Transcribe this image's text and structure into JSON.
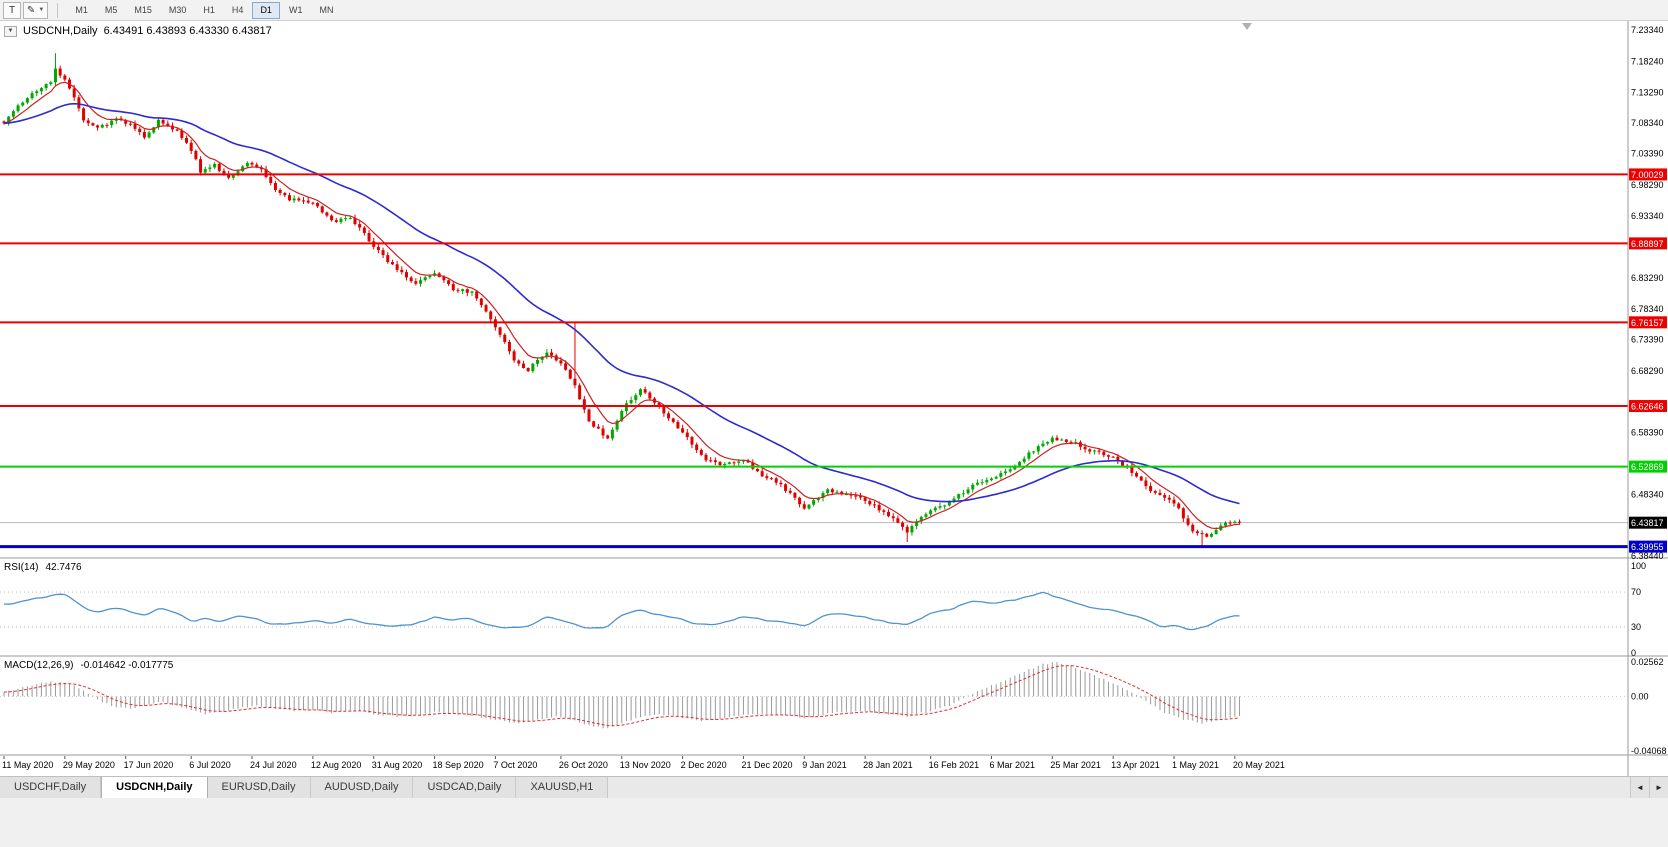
{
  "toolbar": {
    "text_tool_label": "T",
    "pen_icon": "✎",
    "dropdown_icon": "▼",
    "timeframes": [
      "M1",
      "M5",
      "M15",
      "M30",
      "H1",
      "H4",
      "D1",
      "W1",
      "MN"
    ],
    "active_timeframe": "D1"
  },
  "chart": {
    "collapse_icon": "▼",
    "symbol_label": "USDCNH,Daily",
    "ohlc": "6.43491 6.43893 6.43330 6.43817"
  },
  "indicators": {
    "rsi": {
      "label": "RSI(14)",
      "value": "42.7476",
      "levels": [
        "100",
        "70",
        "30",
        "0"
      ],
      "level_values": [
        100,
        70,
        30,
        0
      ]
    },
    "macd": {
      "label": "MACD(12,26,9)",
      "values": "-0.014642 -0.017775",
      "axis": [
        "0.02562",
        "0.00",
        "-0.04068"
      ],
      "axis_values": [
        0.02562,
        0.0,
        -0.04068
      ]
    }
  },
  "price_axis": {
    "labels": [
      "7.23340",
      "7.18240",
      "7.13290",
      "7.08340",
      "7.03390",
      "6.98290",
      "6.93340",
      "6.83290",
      "6.78340",
      "6.73390",
      "6.68290",
      "6.58390",
      "6.48340",
      "6.38440"
    ]
  },
  "hlines": [
    {
      "price": 7.00029,
      "label": "7.00029",
      "color": "#ee0000",
      "width": 2
    },
    {
      "price": 6.88897,
      "label": "6.88897",
      "color": "#ee0000",
      "width": 2
    },
    {
      "price": 6.76157,
      "label": "6.76157",
      "color": "#ee0000",
      "width": 2
    },
    {
      "price": 6.62646,
      "label": "6.62646",
      "color": "#ee0000",
      "width": 2
    },
    {
      "price": 6.52869,
      "label": "6.52869",
      "color": "#00d200",
      "width": 2
    },
    {
      "price": 6.39955,
      "label": "6.39955",
      "color": "#0000c8",
      "width": 3
    }
  ],
  "current_price": {
    "value": 6.43817,
    "label": "6.43817",
    "badge_color": "#000000"
  },
  "tabs": {
    "labels": [
      "USDCHF,Daily",
      "USDCNH,Daily",
      "EURUSD,Daily",
      "AUDUSD,Daily",
      "USDCAD,Daily",
      "XAUUSD,H1"
    ],
    "active": "USDCNH,Daily",
    "scroll_left_icon": "◄",
    "scroll_right_icon": "►"
  },
  "chart_data": {
    "type": "candlestick",
    "symbol": "USDCNH",
    "timeframe": "Daily",
    "bars": 265,
    "price_range": [
      6.3844,
      7.2334
    ],
    "ma_fast_period": 7,
    "ma_slow_period": 34,
    "colors": {
      "up": "#00a800",
      "down": "#e00000",
      "ma_fast": "#cc2222",
      "ma_slow": "#2b2bd0",
      "rsi": "#4f93ce",
      "macd_hist": "#9a9a9a",
      "macd_signal": "#e03030",
      "current_price_line": "#b8b8b8",
      "separator": "#9a9a9a"
    },
    "close_anchors": [
      [
        0,
        7.085
      ],
      [
        5,
        7.125
      ],
      [
        10,
        7.15
      ],
      [
        11,
        7.172
      ],
      [
        14,
        7.14
      ],
      [
        17,
        7.09
      ],
      [
        20,
        7.075
      ],
      [
        24,
        7.09
      ],
      [
        27,
        7.08
      ],
      [
        30,
        7.06
      ],
      [
        33,
        7.088
      ],
      [
        37,
        7.07
      ],
      [
        40,
        7.04
      ],
      [
        42,
        7.005
      ],
      [
        45,
        7.015
      ],
      [
        48,
        6.995
      ],
      [
        52,
        7.02
      ],
      [
        55,
        7.01
      ],
      [
        58,
        6.975
      ],
      [
        61,
        6.96
      ],
      [
        66,
        6.955
      ],
      [
        70,
        6.925
      ],
      [
        74,
        6.93
      ],
      [
        79,
        6.885
      ],
      [
        84,
        6.845
      ],
      [
        88,
        6.825
      ],
      [
        92,
        6.84
      ],
      [
        96,
        6.815
      ],
      [
        100,
        6.81
      ],
      [
        103,
        6.78
      ],
      [
        105,
        6.755
      ],
      [
        109,
        6.7
      ],
      [
        112,
        6.685
      ],
      [
        116,
        6.715
      ],
      [
        119,
        6.695
      ],
      [
        122,
        6.66
      ],
      [
        125,
        6.6
      ],
      [
        129,
        6.575
      ],
      [
        132,
        6.62
      ],
      [
        136,
        6.655
      ],
      [
        140,
        6.625
      ],
      [
        145,
        6.585
      ],
      [
        149,
        6.545
      ],
      [
        153,
        6.53
      ],
      [
        158,
        6.54
      ],
      [
        162,
        6.515
      ],
      [
        166,
        6.5
      ],
      [
        171,
        6.46
      ],
      [
        176,
        6.49
      ],
      [
        180,
        6.485
      ],
      [
        184,
        6.475
      ],
      [
        188,
        6.455
      ],
      [
        193,
        6.425
      ],
      [
        198,
        6.46
      ],
      [
        202,
        6.47
      ],
      [
        207,
        6.5
      ],
      [
        211,
        6.51
      ],
      [
        215,
        6.525
      ],
      [
        219,
        6.55
      ],
      [
        224,
        6.575
      ],
      [
        228,
        6.57
      ],
      [
        232,
        6.555
      ],
      [
        237,
        6.545
      ],
      [
        241,
        6.52
      ],
      [
        245,
        6.49
      ],
      [
        250,
        6.47
      ],
      [
        254,
        6.425
      ],
      [
        257,
        6.415
      ],
      [
        260,
        6.435
      ],
      [
        264,
        6.43817
      ]
    ],
    "wick_spikes": [
      {
        "i": 11,
        "high": 7.196
      },
      {
        "i": 122,
        "high": 6.762
      },
      {
        "i": 193,
        "low": 6.407
      },
      {
        "i": 256,
        "low": 6.4
      }
    ],
    "rsi_anchors": [
      [
        0,
        55
      ],
      [
        6,
        62
      ],
      [
        10,
        66
      ],
      [
        13,
        68
      ],
      [
        17,
        52
      ],
      [
        20,
        46
      ],
      [
        24,
        52
      ],
      [
        27,
        48
      ],
      [
        30,
        42
      ],
      [
        33,
        52
      ],
      [
        37,
        46
      ],
      [
        40,
        36
      ],
      [
        43,
        40
      ],
      [
        46,
        35
      ],
      [
        50,
        44
      ],
      [
        53,
        40
      ],
      [
        57,
        34
      ],
      [
        61,
        33
      ],
      [
        66,
        38
      ],
      [
        70,
        33
      ],
      [
        74,
        40
      ],
      [
        79,
        32
      ],
      [
        84,
        30
      ],
      [
        88,
        33
      ],
      [
        92,
        42
      ],
      [
        96,
        38
      ],
      [
        100,
        40
      ],
      [
        103,
        33
      ],
      [
        106,
        30
      ],
      [
        109,
        28
      ],
      [
        112,
        31
      ],
      [
        116,
        42
      ],
      [
        119,
        38
      ],
      [
        122,
        34
      ],
      [
        125,
        28
      ],
      [
        129,
        30
      ],
      [
        132,
        44
      ],
      [
        136,
        50
      ],
      [
        140,
        44
      ],
      [
        145,
        38
      ],
      [
        149,
        32
      ],
      [
        153,
        34
      ],
      [
        158,
        42
      ],
      [
        162,
        38
      ],
      [
        166,
        36
      ],
      [
        171,
        30
      ],
      [
        176,
        45
      ],
      [
        180,
        44
      ],
      [
        184,
        41
      ],
      [
        188,
        36
      ],
      [
        193,
        31
      ],
      [
        198,
        46
      ],
      [
        202,
        50
      ],
      [
        207,
        60
      ],
      [
        211,
        57
      ],
      [
        215,
        60
      ],
      [
        219,
        64
      ],
      [
        222,
        70
      ],
      [
        224,
        66
      ],
      [
        228,
        60
      ],
      [
        232,
        52
      ],
      [
        237,
        50
      ],
      [
        241,
        43
      ],
      [
        245,
        36
      ],
      [
        248,
        29
      ],
      [
        250,
        32
      ],
      [
        254,
        26
      ],
      [
        257,
        31
      ],
      [
        260,
        40
      ],
      [
        264,
        42.7
      ]
    ],
    "macd_hist_anchors": [
      [
        0,
        0.003
      ],
      [
        4,
        0.007
      ],
      [
        8,
        0.01
      ],
      [
        12,
        0.011
      ],
      [
        15,
        0.008
      ],
      [
        18,
        0.002
      ],
      [
        21,
        -0.004
      ],
      [
        24,
        -0.008
      ],
      [
        27,
        -0.009
      ],
      [
        30,
        -0.007
      ],
      [
        33,
        -0.004
      ],
      [
        36,
        -0.006
      ],
      [
        40,
        -0.01
      ],
      [
        43,
        -0.013
      ],
      [
        46,
        -0.012
      ],
      [
        50,
        -0.009
      ],
      [
        54,
        -0.007
      ],
      [
        58,
        -0.009
      ],
      [
        62,
        -0.011
      ],
      [
        66,
        -0.01
      ],
      [
        70,
        -0.012
      ],
      [
        74,
        -0.01
      ],
      [
        79,
        -0.013
      ],
      [
        84,
        -0.015
      ],
      [
        88,
        -0.014
      ],
      [
        92,
        -0.012
      ],
      [
        96,
        -0.013
      ],
      [
        100,
        -0.014
      ],
      [
        103,
        -0.016
      ],
      [
        106,
        -0.018
      ],
      [
        109,
        -0.02
      ],
      [
        112,
        -0.019
      ],
      [
        116,
        -0.016
      ],
      [
        119,
        -0.015
      ],
      [
        122,
        -0.018
      ],
      [
        125,
        -0.022
      ],
      [
        129,
        -0.024
      ],
      [
        132,
        -0.02
      ],
      [
        136,
        -0.015
      ],
      [
        140,
        -0.013
      ],
      [
        145,
        -0.016
      ],
      [
        149,
        -0.018
      ],
      [
        153,
        -0.017
      ],
      [
        158,
        -0.014
      ],
      [
        162,
        -0.013
      ],
      [
        166,
        -0.014
      ],
      [
        171,
        -0.016
      ],
      [
        176,
        -0.013
      ],
      [
        180,
        -0.011
      ],
      [
        184,
        -0.011
      ],
      [
        188,
        -0.013
      ],
      [
        193,
        -0.015
      ],
      [
        198,
        -0.011
      ],
      [
        202,
        -0.007
      ],
      [
        207,
        0.002
      ],
      [
        211,
        0.008
      ],
      [
        215,
        0.014
      ],
      [
        219,
        0.02
      ],
      [
        222,
        0.024
      ],
      [
        225,
        0.0256
      ],
      [
        228,
        0.023
      ],
      [
        232,
        0.017
      ],
      [
        237,
        0.01
      ],
      [
        241,
        0.003
      ],
      [
        245,
        -0.006
      ],
      [
        248,
        -0.012
      ],
      [
        252,
        -0.017
      ],
      [
        256,
        -0.02
      ],
      [
        260,
        -0.017
      ],
      [
        264,
        -0.0146
      ]
    ],
    "date_anchors": [
      [
        0,
        "11 May 2020"
      ],
      [
        13,
        "29 May 2020"
      ],
      [
        26,
        "17 Jun 2020"
      ],
      [
        40,
        "6 Jul 2020"
      ],
      [
        53,
        "24 Jul 2020"
      ],
      [
        66,
        "12 Aug 2020"
      ],
      [
        79,
        "31 Aug 2020"
      ],
      [
        92,
        "18 Sep 2020"
      ],
      [
        105,
        "7 Oct 2020"
      ],
      [
        119,
        "26 Oct 2020"
      ],
      [
        132,
        "13 Nov 2020"
      ],
      [
        145,
        "2 Dec 2020"
      ],
      [
        158,
        "21 Dec 2020"
      ],
      [
        171,
        "9 Jan 2021"
      ],
      [
        184,
        "28 Jan 2021"
      ],
      [
        198,
        "16 Feb 2021"
      ],
      [
        211,
        "6 Mar 2021"
      ],
      [
        224,
        "25 Mar 2021"
      ],
      [
        237,
        "13 Apr 2021"
      ],
      [
        250,
        "1 May 2021"
      ],
      [
        263,
        "20 May 2021"
      ]
    ]
  }
}
